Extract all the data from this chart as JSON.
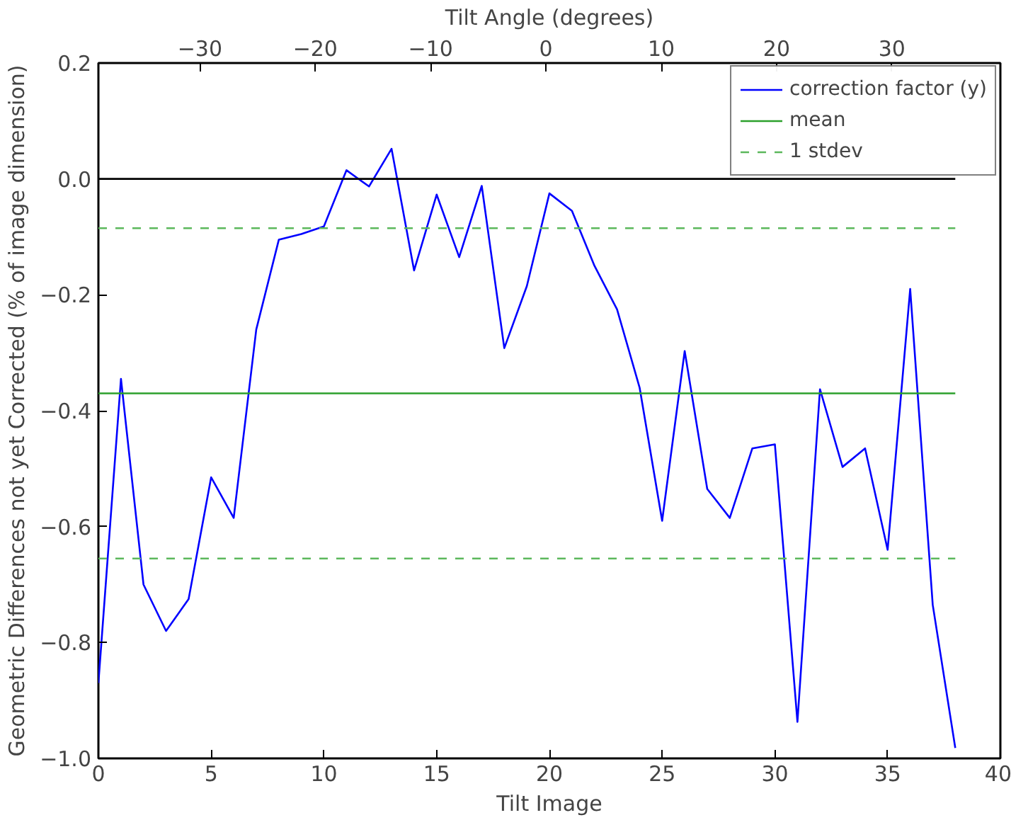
{
  "chart_data": {
    "type": "line",
    "xlabel": "Tilt Image",
    "ylabel": "Geometric Differences not yet Corrected (% of image dimension)",
    "x2label": "Tilt Angle (degrees)",
    "xlim": [
      0,
      40
    ],
    "xticks": [
      0,
      5,
      10,
      15,
      20,
      25,
      30,
      35,
      40
    ],
    "ylim": [
      -1.0,
      0.2
    ],
    "yticks": [
      {
        "value": -1.0,
        "label": "−1.0"
      },
      {
        "value": -0.8,
        "label": "−0.8"
      },
      {
        "value": -0.6,
        "label": "−0.6"
      },
      {
        "value": -0.4,
        "label": "−0.4"
      },
      {
        "value": -0.2,
        "label": "−0.2"
      },
      {
        "value": 0.0,
        "label": "0.0"
      },
      {
        "value": 0.2,
        "label": "0.2"
      }
    ],
    "x2lim": [
      -38.8,
      39.4
    ],
    "x2ticks": [
      {
        "value": -30,
        "label": "−30"
      },
      {
        "value": -20,
        "label": "−20"
      },
      {
        "value": -10,
        "label": "−10"
      },
      0,
      10,
      20,
      30
    ],
    "grid": false,
    "legend": "top right",
    "series": [
      {
        "name": "correction factor (y)",
        "color": "#0000ff",
        "x": [
          0,
          1,
          2,
          3,
          4,
          5,
          6,
          7,
          8,
          9,
          10,
          11,
          12,
          13,
          14,
          15,
          16,
          17,
          18,
          19,
          20,
          21,
          22,
          23,
          24,
          25,
          26,
          27,
          28,
          29,
          30,
          31,
          32,
          33,
          34,
          35,
          36,
          37,
          38
        ],
        "values": [
          -0.87,
          -0.345,
          -0.7,
          -0.78,
          -0.725,
          -0.515,
          -0.585,
          -0.26,
          -0.105,
          -0.095,
          -0.082,
          0.015,
          -0.013,
          0.052,
          -0.158,
          -0.027,
          -0.135,
          -0.012,
          -0.292,
          -0.185,
          -0.025,
          -0.055,
          -0.15,
          -0.225,
          -0.36,
          -0.59,
          -0.297,
          -0.535,
          -0.585,
          -0.465,
          -0.458,
          -0.937,
          -0.363,
          -0.497,
          -0.465,
          -0.64,
          -0.19,
          -0.735,
          -0.982
        ]
      },
      {
        "name": "mean",
        "color": "#2ca02c",
        "x": [
          0,
          38
        ],
        "values": [
          -0.37,
          -0.37
        ]
      },
      {
        "name": "1 stdev",
        "color": "#5cb85c",
        "line_style": "dashed",
        "x": [
          0,
          38
        ],
        "values": [
          -0.085,
          -0.085
        ]
      },
      {
        "color": "#5cb85c",
        "line_style": "dashed",
        "x": [
          0,
          38
        ],
        "values": [
          -0.655,
          -0.655
        ]
      },
      {
        "color": "#000000",
        "x": [
          0,
          38
        ],
        "values": [
          0.0,
          0.0
        ]
      }
    ]
  }
}
